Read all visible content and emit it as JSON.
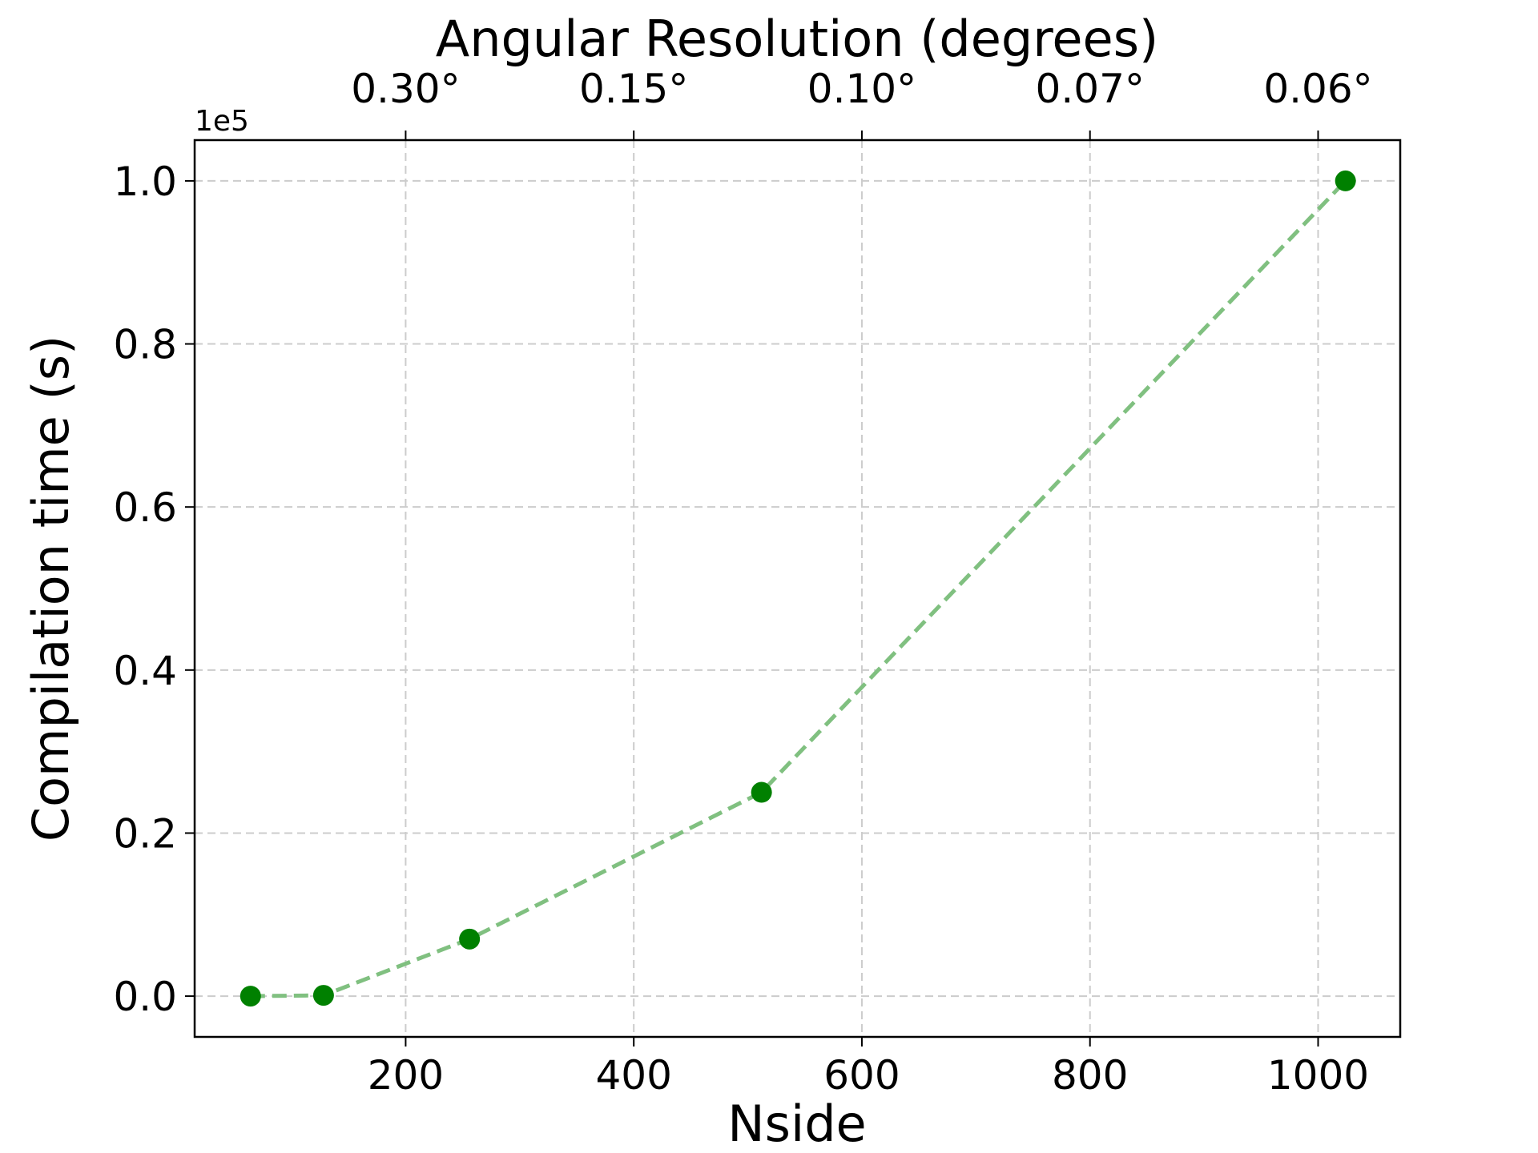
{
  "chart_data": {
    "type": "line",
    "title": "",
    "xlabel": "Nside",
    "ylabel": "Compilation time (s)",
    "top_xlabel": "Angular Resolution (degrees)",
    "y_offset_label": "1e5",
    "xlim": [
      15,
      1072
    ],
    "ylim": [
      -0.05,
      1.05
    ],
    "x_ticks": [
      200,
      400,
      600,
      800,
      1000
    ],
    "x_tick_labels": [
      "200",
      "400",
      "600",
      "800",
      "1000"
    ],
    "y_ticks": [
      0.0,
      0.2,
      0.4,
      0.6,
      0.8,
      1.0
    ],
    "y_tick_labels": [
      "0.0",
      "0.2",
      "0.4",
      "0.6",
      "0.8",
      "1.0"
    ],
    "top_ticks": [
      200,
      400,
      600,
      800,
      1000
    ],
    "top_tick_labels": [
      "0.30°",
      "0.15°",
      "0.10°",
      "0.07°",
      "0.06°"
    ],
    "grid": true,
    "series": [
      {
        "x": [
          64,
          128,
          256,
          512,
          1024
        ],
        "y": [
          0.0,
          0.001,
          0.07,
          0.25,
          1.0
        ],
        "color": "#008000",
        "line_color": "#80c080",
        "line_style": "dashed",
        "marker": "circle"
      }
    ]
  }
}
